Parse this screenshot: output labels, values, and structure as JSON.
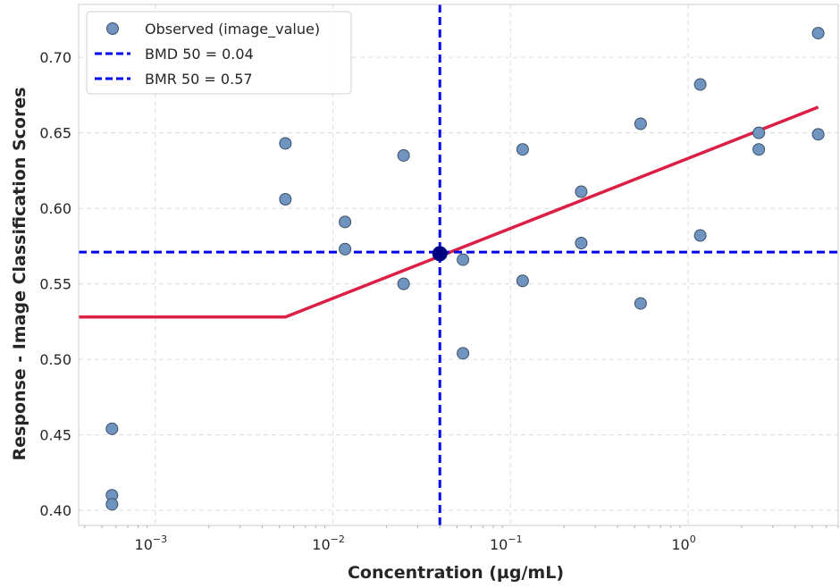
{
  "chart_data": {
    "type": "scatter",
    "title": "",
    "xlabel": "Concentration (µg/mL)",
    "ylabel": "Response - Image Classification Scores",
    "x_scale": "log",
    "xlim": [
      0.00037,
      7.0
    ],
    "ylim": [
      0.39,
      0.735
    ],
    "grid": true,
    "legend_position": "top-left",
    "x_ticks": [
      {
        "value": 0.001,
        "base": "10",
        "exp": "−3"
      },
      {
        "value": 0.01,
        "base": "10",
        "exp": "−2"
      },
      {
        "value": 0.1,
        "base": "10",
        "exp": "−1"
      },
      {
        "value": 1,
        "base": "10",
        "exp": "0"
      }
    ],
    "y_ticks": [
      {
        "value": 0.4,
        "label": "0.40"
      },
      {
        "value": 0.45,
        "label": "0.45"
      },
      {
        "value": 0.5,
        "label": "0.50"
      },
      {
        "value": 0.55,
        "label": "0.55"
      },
      {
        "value": 0.6,
        "label": "0.60"
      },
      {
        "value": 0.65,
        "label": "0.65"
      },
      {
        "value": 0.7,
        "label": "0.70"
      }
    ],
    "series": [
      {
        "name": "Observed (image_value)",
        "kind": "scatter",
        "color": "#6f94c0",
        "edge_color": "#3d5168",
        "points": [
          {
            "x": 0.00057,
            "y": 0.454
          },
          {
            "x": 0.00057,
            "y": 0.41
          },
          {
            "x": 0.00057,
            "y": 0.404
          },
          {
            "x": 0.0054,
            "y": 0.643
          },
          {
            "x": 0.0054,
            "y": 0.606
          },
          {
            "x": 0.0117,
            "y": 0.591
          },
          {
            "x": 0.0117,
            "y": 0.573
          },
          {
            "x": 0.025,
            "y": 0.635
          },
          {
            "x": 0.025,
            "y": 0.55
          },
          {
            "x": 0.054,
            "y": 0.566
          },
          {
            "x": 0.054,
            "y": 0.504
          },
          {
            "x": 0.117,
            "y": 0.639
          },
          {
            "x": 0.117,
            "y": 0.552
          },
          {
            "x": 0.25,
            "y": 0.611
          },
          {
            "x": 0.25,
            "y": 0.577
          },
          {
            "x": 0.54,
            "y": 0.656
          },
          {
            "x": 0.54,
            "y": 0.537
          },
          {
            "x": 1.17,
            "y": 0.682
          },
          {
            "x": 1.17,
            "y": 0.582
          },
          {
            "x": 2.5,
            "y": 0.65
          },
          {
            "x": 2.5,
            "y": 0.639
          },
          {
            "x": 5.4,
            "y": 0.716
          },
          {
            "x": 5.4,
            "y": 0.649
          }
        ]
      },
      {
        "name": "",
        "kind": "line",
        "color": "#dc1f45",
        "points": [
          {
            "x": 0.00037,
            "y": 0.528
          },
          {
            "x": 0.0054,
            "y": 0.528
          },
          {
            "x": 5.4,
            "y": 0.667
          }
        ]
      },
      {
        "name": "BMD 50 = 0.04",
        "kind": "vline",
        "color": "#0000ee",
        "x": 0.04
      },
      {
        "name": "BMR 50 = 0.57",
        "kind": "hline",
        "color": "#0000ee",
        "y": 0.571
      }
    ],
    "highlight_point": {
      "x": 0.04,
      "y": 0.57,
      "color": "#000080"
    }
  }
}
